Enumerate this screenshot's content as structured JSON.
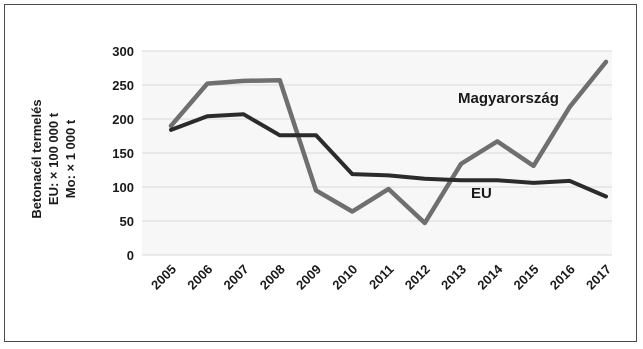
{
  "chart_data": {
    "type": "line",
    "title": "",
    "ylabel_lines": [
      "Betonacél termelés",
      "EU: × 100 000 t",
      "Mo: × 1 000 t"
    ],
    "xlabel": "",
    "categories": [
      "2005",
      "2006",
      "2007",
      "2008",
      "2009",
      "2010",
      "2011",
      "2012",
      "2013",
      "2014",
      "2015",
      "2016",
      "2017"
    ],
    "ylim": [
      0,
      300
    ],
    "yticks": [
      0,
      50,
      100,
      150,
      200,
      250,
      300
    ],
    "grid": "horizontal",
    "series": [
      {
        "name": "Magyarország",
        "values": [
          190,
          252,
          256,
          257,
          95,
          64,
          97,
          47,
          134,
          167,
          131,
          218,
          284
        ],
        "color": "#6f6f6f"
      },
      {
        "name": "EU",
        "values": [
          184,
          204,
          207,
          176,
          176,
          119,
          117,
          112,
          110,
          110,
          106,
          109,
          86
        ],
        "color": "#2b2b2b"
      }
    ]
  }
}
